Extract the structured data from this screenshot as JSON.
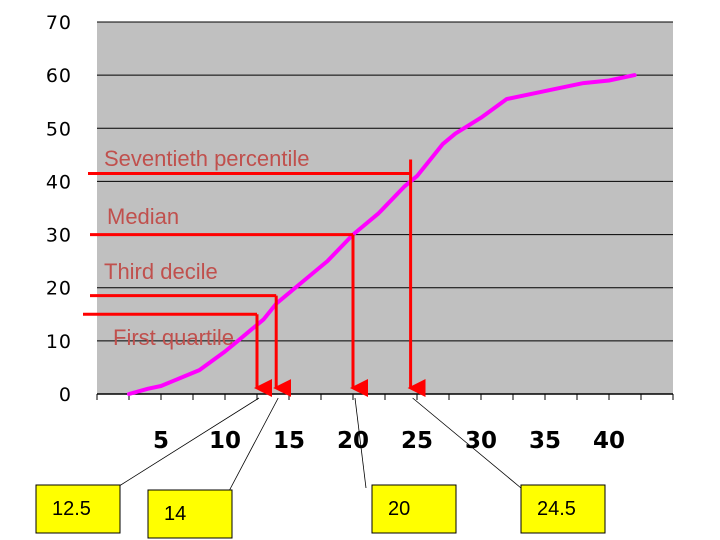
{
  "chart_data": {
    "type": "line",
    "title": "",
    "xlabel": "",
    "ylabel": "",
    "xlim": [
      0,
      45
    ],
    "ylim": [
      0,
      70
    ],
    "grid": true,
    "colors": {
      "plot_bg": "#c0c0c0",
      "line": "#ff00ff",
      "annotation_line": "#ff0000",
      "annotation_text": "#c0504d",
      "box_fill": "#ffff00",
      "grid": "#000000"
    },
    "y_ticks": [
      0,
      10,
      20,
      30,
      40,
      50,
      60,
      70
    ],
    "x_ticks": [
      5,
      10,
      15,
      20,
      25,
      30,
      35,
      40
    ],
    "series": [
      {
        "x": [
          2.5,
          4,
          5,
          6,
          8,
          10,
          11,
          12,
          13,
          14,
          16,
          18,
          20,
          22,
          24,
          25,
          26,
          27,
          28,
          30,
          32,
          35,
          38,
          40,
          42
        ],
        "y": [
          0,
          1,
          1.5,
          2.5,
          4.5,
          8,
          10,
          12,
          14,
          17,
          21,
          25,
          30,
          34,
          39,
          41,
          44,
          47,
          49,
          52,
          55.5,
          57,
          58.5,
          59,
          60
        ]
      }
    ],
    "annotations": [
      {
        "label": "Seventieth percentile",
        "y": 41.5,
        "x": 24.5,
        "value_label": "24.5"
      },
      {
        "label": "Median",
        "y": 30,
        "x": 20,
        "value_label": "20"
      },
      {
        "label": "Third decile",
        "y": 18.5,
        "x": 14,
        "value_label": "14"
      },
      {
        "label": "First quartile",
        "y": 15,
        "x": 12.5,
        "value_label": "12.5"
      }
    ]
  }
}
